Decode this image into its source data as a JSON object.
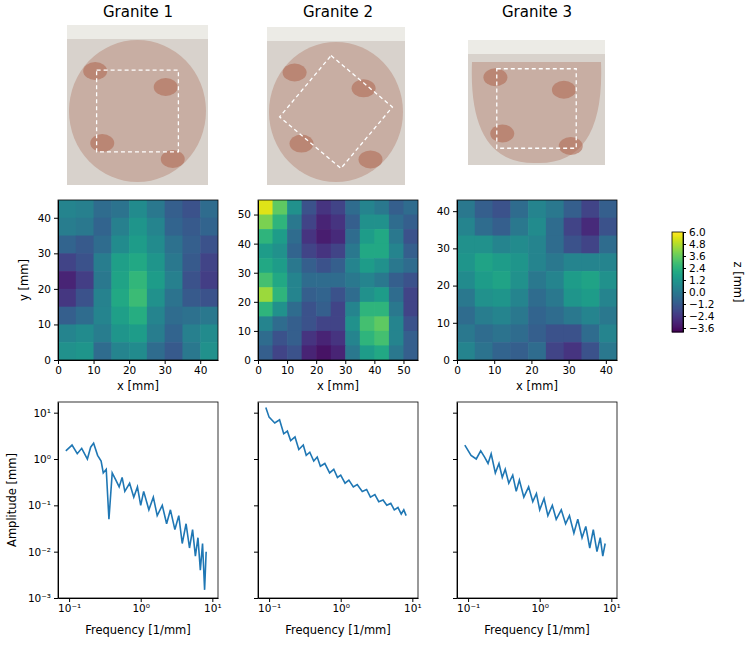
{
  "chart_data": [
    {
      "type": "heatmap",
      "title": "Granite 1",
      "x_label": "x [mm]",
      "y_label": "y [mm]",
      "color": "viridis",
      "xlim": [
        0,
        45
      ],
      "ylim": [
        0,
        45
      ],
      "xticks": [
        0,
        10,
        20,
        30,
        40
      ],
      "yticks": [
        0,
        10,
        20,
        30,
        40
      ],
      "z": [
        [
          0.5,
          0.3,
          -0.5,
          -0.2,
          0.8,
          0.0,
          -1.0,
          -1.5,
          -0.5
        ],
        [
          0.2,
          0.0,
          -0.8,
          0.3,
          1.2,
          0.5,
          -0.8,
          -1.2,
          -0.8
        ],
        [
          -0.8,
          -1.2,
          -0.5,
          0.8,
          1.5,
          0.8,
          -0.3,
          -1.0,
          -1.5
        ],
        [
          -2.0,
          -1.5,
          0.2,
          1.6,
          2.0,
          1.2,
          0.0,
          -1.2,
          -2.0
        ],
        [
          -3.0,
          -2.2,
          0.0,
          1.8,
          2.6,
          1.5,
          0.3,
          -1.5,
          -2.2
        ],
        [
          -2.4,
          -1.5,
          0.4,
          2.0,
          2.8,
          1.0,
          -0.2,
          -1.2,
          -1.5
        ],
        [
          -1.0,
          -0.5,
          0.5,
          1.6,
          2.2,
          0.5,
          -0.5,
          -0.3,
          0.0
        ],
        [
          0.5,
          0.8,
          0.2,
          1.2,
          1.5,
          0.2,
          -0.8,
          0.3,
          0.8
        ],
        [
          1.0,
          1.2,
          -0.5,
          0.5,
          0.8,
          -0.5,
          -1.2,
          0.0,
          1.0
        ]
      ]
    },
    {
      "type": "heatmap",
      "title": "Granite 2",
      "x_label": "x [mm]",
      "color": "viridis",
      "xlim": [
        0,
        55
      ],
      "ylim": [
        0,
        55
      ],
      "xticks": [
        0,
        10,
        20,
        30,
        40,
        50
      ],
      "yticks": [
        0,
        10,
        20,
        30,
        40,
        50
      ],
      "z": [
        [
          5.5,
          3.5,
          1.0,
          -1.5,
          -2.5,
          -2.0,
          -0.5,
          0.5,
          0.0,
          -1.0,
          -0.5
        ],
        [
          4.0,
          2.5,
          0.0,
          -2.0,
          -3.0,
          -2.5,
          -1.0,
          1.0,
          1.0,
          -0.5,
          -1.0
        ],
        [
          2.5,
          1.5,
          -0.5,
          -2.5,
          -3.2,
          -2.8,
          -0.5,
          1.5,
          2.0,
          0.0,
          -1.5
        ],
        [
          1.5,
          1.0,
          -0.8,
          -2.0,
          -2.5,
          -2.0,
          0.0,
          2.0,
          2.0,
          0.5,
          -1.0
        ],
        [
          2.0,
          1.5,
          0.0,
          -1.0,
          -1.5,
          -1.0,
          0.5,
          1.5,
          1.0,
          0.0,
          -0.5
        ],
        [
          3.0,
          2.0,
          0.5,
          -0.5,
          -0.5,
          -0.5,
          0.0,
          0.5,
          0.0,
          -1.0,
          -1.5
        ],
        [
          4.5,
          2.5,
          0.5,
          -1.0,
          -0.8,
          -1.5,
          -0.5,
          1.0,
          1.5,
          -0.5,
          -2.0
        ],
        [
          2.5,
          1.0,
          -0.5,
          -1.5,
          -1.0,
          -2.0,
          0.5,
          2.5,
          2.5,
          0.0,
          -2.0
        ],
        [
          0.5,
          -0.5,
          -1.0,
          -1.5,
          -2.0,
          -2.0,
          1.0,
          3.0,
          3.5,
          0.5,
          -1.5
        ],
        [
          -0.5,
          -1.5,
          -1.0,
          -2.5,
          -3.0,
          -2.5,
          0.5,
          2.5,
          3.0,
          0.5,
          -1.0
        ],
        [
          -1.0,
          -2.0,
          -1.5,
          -3.0,
          -3.5,
          -3.0,
          0.0,
          1.5,
          2.0,
          0.0,
          -1.0
        ]
      ]
    },
    {
      "type": "heatmap",
      "title": "Granite 3",
      "x_label": "x [mm]",
      "color": "viridis",
      "xlim": [
        0,
        43
      ],
      "ylim": [
        0,
        43
      ],
      "xticks": [
        0,
        10,
        20,
        30,
        40
      ],
      "yticks": [
        0,
        10,
        20,
        30,
        40
      ],
      "z": [
        [
          0.0,
          -1.0,
          -1.5,
          -0.5,
          0.5,
          0.0,
          -1.0,
          -2.0,
          -1.0
        ],
        [
          0.5,
          -0.5,
          -1.0,
          0.0,
          0.8,
          -0.5,
          -2.0,
          -2.8,
          -1.5
        ],
        [
          1.0,
          1.0,
          0.5,
          0.8,
          0.5,
          -0.5,
          -1.5,
          -2.0,
          -0.5
        ],
        [
          1.2,
          1.8,
          1.5,
          1.2,
          0.5,
          0.0,
          0.5,
          0.5,
          0.5
        ],
        [
          0.8,
          1.5,
          1.8,
          1.0,
          0.0,
          0.5,
          1.5,
          1.8,
          1.0
        ],
        [
          0.0,
          1.0,
          1.2,
          0.5,
          -0.5,
          0.0,
          1.2,
          1.5,
          0.5
        ],
        [
          -0.5,
          0.2,
          0.5,
          0.0,
          -0.8,
          -0.5,
          0.0,
          0.5,
          0.0
        ],
        [
          0.0,
          -0.5,
          -0.2,
          -0.5,
          -1.0,
          -1.5,
          -1.5,
          -0.5,
          0.5
        ],
        [
          0.5,
          -0.2,
          -0.8,
          -1.0,
          -0.5,
          -2.0,
          -2.5,
          -1.5,
          0.0
        ]
      ]
    },
    {
      "type": "colorbar",
      "title": "z [mm]",
      "color": "viridis",
      "zlim": [
        -4.0,
        6.0
      ],
      "zticks": [
        {
          "value": -3.6,
          "label": "−3.6"
        },
        {
          "value": -2.4,
          "label": "−2.4"
        },
        {
          "value": -1.2,
          "label": "−1.2"
        },
        {
          "value": 0,
          "label": "0.0"
        },
        1.2,
        2.4,
        3.6,
        4.8,
        {
          "value": 6,
          "label": "6.0"
        }
      ]
    },
    {
      "type": "line",
      "log": true,
      "x_label": "Frequency [1/mm]",
      "y_label": "Amplitude [mm]",
      "xlim": [
        0.07,
        12
      ],
      "ylim": [
        0.001,
        17
      ],
      "xticks": [
        {
          "value": 0.1,
          "label": "10⁻¹"
        },
        {
          "value": 1,
          "label": "10⁰"
        },
        {
          "value": 10,
          "label": "10¹"
        }
      ],
      "yticks": [
        {
          "value": 0.001,
          "label": "10⁻³"
        },
        {
          "value": 0.01,
          "label": "10⁻²"
        },
        {
          "value": 0.1,
          "label": "10⁻¹"
        },
        {
          "value": 1,
          "label": "10⁰"
        },
        {
          "value": 10,
          "label": "10¹"
        }
      ],
      "x": [
        0.09,
        0.11,
        0.13,
        0.15,
        0.18,
        0.2,
        0.22,
        0.25,
        0.28,
        0.3,
        0.33,
        0.36,
        0.4,
        0.45,
        0.5,
        0.55,
        0.6,
        0.7,
        0.8,
        0.9,
        1.0,
        1.1,
        1.3,
        1.5,
        1.7,
        2.0,
        2.3,
        2.6,
        3.0,
        3.4,
        3.8,
        4.3,
        4.8,
        5.3,
        5.8,
        6.3,
        6.8,
        7.3,
        7.8,
        8.2
      ],
      "series": [
        {
          "color": "#1f77b4",
          "values": [
            1.5,
            2.0,
            1.3,
            1.7,
            1.0,
            1.8,
            2.2,
            1.2,
            0.9,
            0.5,
            0.6,
            0.05,
            0.5,
            0.35,
            0.25,
            0.4,
            0.2,
            0.3,
            0.15,
            0.25,
            0.1,
            0.2,
            0.08,
            0.15,
            0.06,
            0.1,
            0.04,
            0.08,
            0.03,
            0.06,
            0.015,
            0.04,
            0.012,
            0.03,
            0.008,
            0.02,
            0.004,
            0.015,
            0.0015,
            0.01
          ]
        }
      ]
    },
    {
      "type": "line",
      "log": true,
      "x_label": "Frequency [1/mm]",
      "tick_labels": "x",
      "xlim": [
        0.07,
        12
      ],
      "ylim": [
        0.001,
        17
      ],
      "xticks": [
        {
          "value": 0.1,
          "label": "10⁻¹"
        },
        {
          "value": 1,
          "label": "10⁰"
        },
        {
          "value": 10,
          "label": "10¹"
        }
      ],
      "yticks": [
        0.001,
        0.01,
        0.1,
        1,
        10
      ],
      "x": [
        0.09,
        0.1,
        0.12,
        0.14,
        0.16,
        0.18,
        0.2,
        0.23,
        0.26,
        0.3,
        0.33,
        0.37,
        0.42,
        0.47,
        0.52,
        0.6,
        0.7,
        0.8,
        0.9,
        1.0,
        1.15,
        1.3,
        1.5,
        1.7,
        2.0,
        2.3,
        2.6,
        3.0,
        3.4,
        3.9,
        4.4,
        5.0,
        5.6,
        6.3,
        7.0,
        7.6,
        8.2
      ],
      "series": [
        {
          "color": "#1f77b4",
          "values": [
            13,
            8,
            6,
            7,
            3.5,
            4,
            2.5,
            3,
            1.6,
            2.0,
            1.2,
            1.4,
            0.9,
            1.1,
            0.7,
            0.8,
            0.5,
            0.6,
            0.4,
            0.45,
            0.3,
            0.35,
            0.25,
            0.28,
            0.2,
            0.22,
            0.15,
            0.17,
            0.12,
            0.13,
            0.1,
            0.11,
            0.08,
            0.09,
            0.065,
            0.08,
            0.06
          ]
        }
      ]
    },
    {
      "type": "line",
      "log": true,
      "x_label": "Frequency [1/mm]",
      "tick_labels": "x",
      "xlim": [
        0.07,
        12
      ],
      "ylim": [
        0.001,
        17
      ],
      "xticks": [
        {
          "value": 0.1,
          "label": "10⁻¹"
        },
        {
          "value": 1,
          "label": "10⁰"
        },
        {
          "value": 10,
          "label": "10¹"
        }
      ],
      "yticks": [
        0.001,
        0.01,
        0.1,
        1,
        10
      ],
      "x": [
        0.09,
        0.11,
        0.13,
        0.15,
        0.17,
        0.19,
        0.21,
        0.24,
        0.27,
        0.3,
        0.33,
        0.37,
        0.42,
        0.47,
        0.52,
        0.6,
        0.7,
        0.8,
        0.9,
        1.0,
        1.15,
        1.3,
        1.5,
        1.7,
        2.0,
        2.3,
        2.6,
        3.0,
        3.4,
        3.9,
        4.4,
        5.0,
        5.6,
        6.3,
        7.0,
        7.6,
        8.2
      ],
      "series": [
        {
          "color": "#1f77b4",
          "values": [
            2.0,
            1.2,
            1.0,
            1.5,
            1.1,
            0.8,
            1.3,
            0.5,
            0.8,
            0.4,
            0.6,
            0.3,
            0.45,
            0.2,
            0.35,
            0.15,
            0.25,
            0.12,
            0.18,
            0.08,
            0.14,
            0.06,
            0.1,
            0.05,
            0.08,
            0.04,
            0.06,
            0.025,
            0.05,
            0.02,
            0.035,
            0.012,
            0.03,
            0.01,
            0.02,
            0.008,
            0.015
          ]
        }
      ]
    }
  ]
}
